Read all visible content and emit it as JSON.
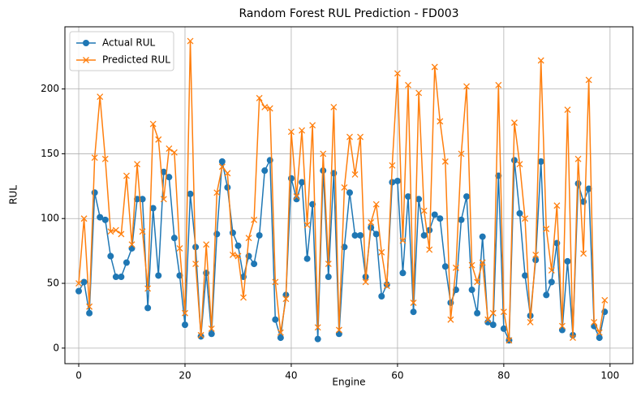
{
  "chart_data": {
    "type": "line",
    "title": "Random Forest RUL Prediction - FD003",
    "x_label": "Engine",
    "y_label": "RUL",
    "x": [
      0,
      1,
      2,
      3,
      4,
      5,
      6,
      7,
      8,
      9,
      10,
      11,
      12,
      13,
      14,
      15,
      16,
      17,
      18,
      19,
      20,
      21,
      22,
      23,
      24,
      25,
      26,
      27,
      28,
      29,
      30,
      31,
      32,
      33,
      34,
      35,
      36,
      37,
      38,
      39,
      40,
      41,
      42,
      43,
      44,
      45,
      46,
      47,
      48,
      49,
      50,
      51,
      52,
      53,
      54,
      55,
      56,
      57,
      58,
      59,
      60,
      61,
      62,
      63,
      64,
      65,
      66,
      67,
      68,
      69,
      70,
      71,
      72,
      73,
      74,
      75,
      76,
      77,
      78,
      79,
      80,
      81,
      82,
      83,
      84,
      85,
      86,
      87,
      88,
      89,
      90,
      91,
      92,
      93,
      94,
      95,
      96,
      97,
      98,
      99
    ],
    "series": [
      {
        "name": "Actual RUL",
        "color": "#1f77b4",
        "marker": "o",
        "values": [
          44,
          51,
          27,
          120,
          101,
          99,
          71,
          55,
          55,
          66,
          77,
          115,
          115,
          31,
          108,
          56,
          136,
          132,
          85,
          56,
          18,
          119,
          78,
          9,
          58,
          11,
          88,
          144,
          124,
          89,
          79,
          55,
          71,
          65,
          87,
          137,
          145,
          22,
          8,
          41,
          131,
          115,
          128,
          69,
          111,
          7,
          137,
          55,
          135,
          11,
          78,
          120,
          87,
          87,
          55,
          93,
          88,
          40,
          49,
          128,
          129,
          58,
          117,
          28,
          115,
          87,
          91,
          103,
          100,
          63,
          35,
          45,
          99,
          117,
          45,
          27,
          86,
          20,
          18,
          133,
          15,
          6,
          145,
          104,
          56,
          25,
          68,
          144,
          41,
          51,
          81,
          14,
          67,
          10,
          127,
          113,
          123,
          17,
          8,
          28
        ]
      },
      {
        "name": "Predicted RUL",
        "color": "#ff7f0e",
        "marker": "x",
        "values": [
          50,
          100,
          32,
          147,
          194,
          146,
          90,
          91,
          88,
          133,
          80,
          142,
          90,
          46,
          173,
          161,
          115,
          154,
          151,
          77,
          27,
          237,
          65,
          10,
          80,
          15,
          120,
          140,
          135,
          72,
          71,
          39,
          85,
          99,
          193,
          186,
          185,
          51,
          12,
          38,
          167,
          117,
          168,
          95,
          172,
          16,
          150,
          65,
          186,
          14,
          124,
          163,
          134,
          163,
          51,
          97,
          111,
          74,
          48,
          141,
          212,
          83,
          203,
          35,
          197,
          106,
          76,
          217,
          175,
          144,
          22,
          62,
          150,
          202,
          64,
          51,
          66,
          22,
          27,
          203,
          28,
          6,
          174,
          142,
          100,
          20,
          72,
          222,
          92,
          60,
          110,
          17,
          184,
          8,
          146,
          73,
          207,
          20,
          12,
          37
        ]
      }
    ],
    "xlim": [
      -2.6,
      104.3
    ],
    "xticks": [
      0,
      20,
      40,
      60,
      80,
      100
    ],
    "ylim": [
      -12,
      248
    ],
    "yticks": [
      0,
      50,
      100,
      150,
      200
    ],
    "grid": true,
    "legend": "upper left"
  }
}
